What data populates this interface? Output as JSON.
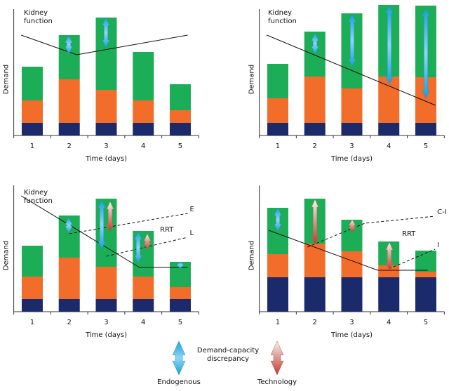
{
  "chart_data": [
    {
      "type": "bar",
      "stacked": true,
      "xlabel": "Time (days)",
      "ylabel": "Demand",
      "x": [
        1,
        2,
        3,
        4,
        5
      ],
      "xticks": [
        1,
        2,
        3,
        4,
        5
      ],
      "xlim": [
        0.5,
        5.5
      ],
      "ylim": [
        0,
        180
      ],
      "series": [
        {
          "color": "#1b2a6b",
          "values": [
            18,
            18,
            18,
            18,
            18
          ]
        },
        {
          "color": "#f26c2a",
          "values": [
            32,
            62,
            47,
            32,
            18
          ]
        },
        {
          "color": "#1cae57",
          "values": [
            48,
            63,
            103,
            69,
            37
          ]
        }
      ],
      "lines": [
        {
          "label": "Kidney function",
          "style": "solid",
          "x": [
            0.7,
            2.2,
            5.2
          ],
          "values": [
            143,
            115,
            143
          ]
        }
      ]
    },
    {
      "type": "bar",
      "stacked": true,
      "xlabel": "Time (days)",
      "ylabel": "Demand",
      "x": [
        1,
        2,
        3,
        4,
        5
      ],
      "xticks": [
        1,
        2,
        3,
        4,
        5
      ],
      "xlim": [
        0.5,
        5.5
      ],
      "ylim": [
        0,
        180
      ],
      "series": [
        {
          "color": "#1b2a6b",
          "values": [
            18,
            18,
            18,
            18,
            18
          ]
        },
        {
          "color": "#f26c2a",
          "values": [
            35,
            66,
            49,
            66,
            65
          ]
        },
        {
          "color": "#1cae57",
          "values": [
            49,
            64,
            107,
            102,
            102
          ]
        }
      ],
      "lines": [
        {
          "label": "Kidney function",
          "style": "solid",
          "x": [
            0.7,
            5.26
          ],
          "values": [
            143,
            43
          ]
        }
      ]
    },
    {
      "type": "bar",
      "stacked": true,
      "xlabel": "Time (days)",
      "ylabel": "Demand",
      "x": [
        1,
        2,
        3,
        4,
        5
      ],
      "xticks": [
        1,
        2,
        3,
        4,
        5
      ],
      "xlim": [
        0.5,
        5.5
      ],
      "ylim": [
        0,
        180
      ],
      "series": [
        {
          "color": "#1b2a6b",
          "values": [
            18,
            18,
            18,
            18,
            18
          ]
        },
        {
          "color": "#f26c2a",
          "values": [
            32,
            59,
            46,
            32,
            17
          ]
        },
        {
          "color": "#1cae57",
          "values": [
            44,
            60,
            97,
            65,
            36
          ]
        }
      ],
      "lines": [
        {
          "label": "Kidney function",
          "style": "solid",
          "x": [
            0.7,
            3.9,
            5.2
          ],
          "values": [
            165,
            63,
            63
          ]
        },
        {
          "label": "E",
          "style": "dashed",
          "x": [
            2.0,
            5.2
          ],
          "values": [
            111,
            140
          ]
        },
        {
          "label": "L",
          "style": "dashed",
          "x": [
            3.0,
            5.2
          ],
          "values": [
            79,
            106
          ]
        }
      ],
      "annotation": "RRT"
    },
    {
      "type": "bar",
      "stacked": true,
      "xlabel": "Time (days)",
      "ylabel": "Demand",
      "x": [
        1,
        2,
        3,
        4,
        5
      ],
      "xticks": [
        1,
        2,
        3,
        4,
        5
      ],
      "xlim": [
        0.5,
        5.5
      ],
      "ylim": [
        0,
        180
      ],
      "series": [
        {
          "color": "#1b2a6b",
          "values": [
            49,
            49,
            49,
            49,
            49
          ]
        },
        {
          "color": "#f26c2a",
          "values": [
            33,
            48,
            37,
            17,
            8
          ]
        },
        {
          "color": "#1cae57",
          "values": [
            66,
            64,
            45,
            34,
            30
          ]
        }
      ],
      "lines": [
        {
          "label": "Kidney function",
          "style": "solid",
          "x": [
            0.75,
            3.7,
            5.05
          ],
          "values": [
            116,
            59,
            59
          ]
        },
        {
          "label": "C-I",
          "style": "dashed",
          "x": [
            1.8,
            3.35,
            5.25
          ],
          "values": [
            92,
            126,
            136
          ]
        },
        {
          "label": "I",
          "style": "dashed",
          "x": [
            4.0,
            5.25
          ],
          "values": [
            61,
            89
          ]
        }
      ],
      "annotation": "RRT"
    }
  ],
  "legend": {
    "title": "Demand-capacity discrepancy",
    "endogenous": "Endogenous",
    "technology": "Technology"
  }
}
